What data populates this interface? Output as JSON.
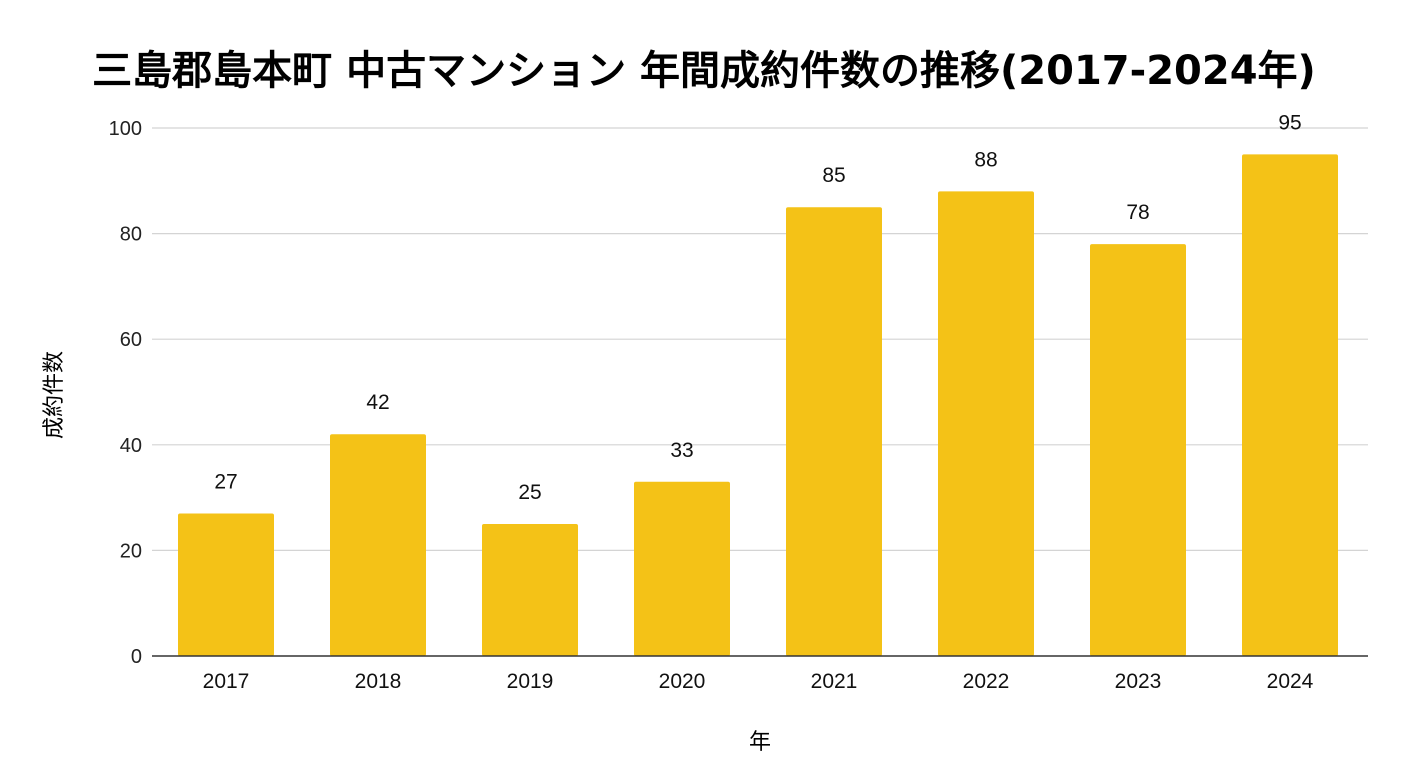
{
  "chart_data": {
    "type": "bar",
    "title": "三島郡島本町 中古マンション 年間成約件数の推移(2017-2024年)",
    "xlabel": "年",
    "ylabel": "成約件数",
    "categories": [
      "2017",
      "2018",
      "2019",
      "2020",
      "2021",
      "2022",
      "2023",
      "2024"
    ],
    "values": [
      27,
      42,
      25,
      33,
      85,
      88,
      78,
      95
    ],
    "ylim": [
      0,
      100
    ],
    "yticks": [
      "0",
      "20",
      "40",
      "60",
      "80",
      "100"
    ],
    "grid": true,
    "legend": "none",
    "data_labels": true,
    "bar_color": "#F4C217"
  }
}
